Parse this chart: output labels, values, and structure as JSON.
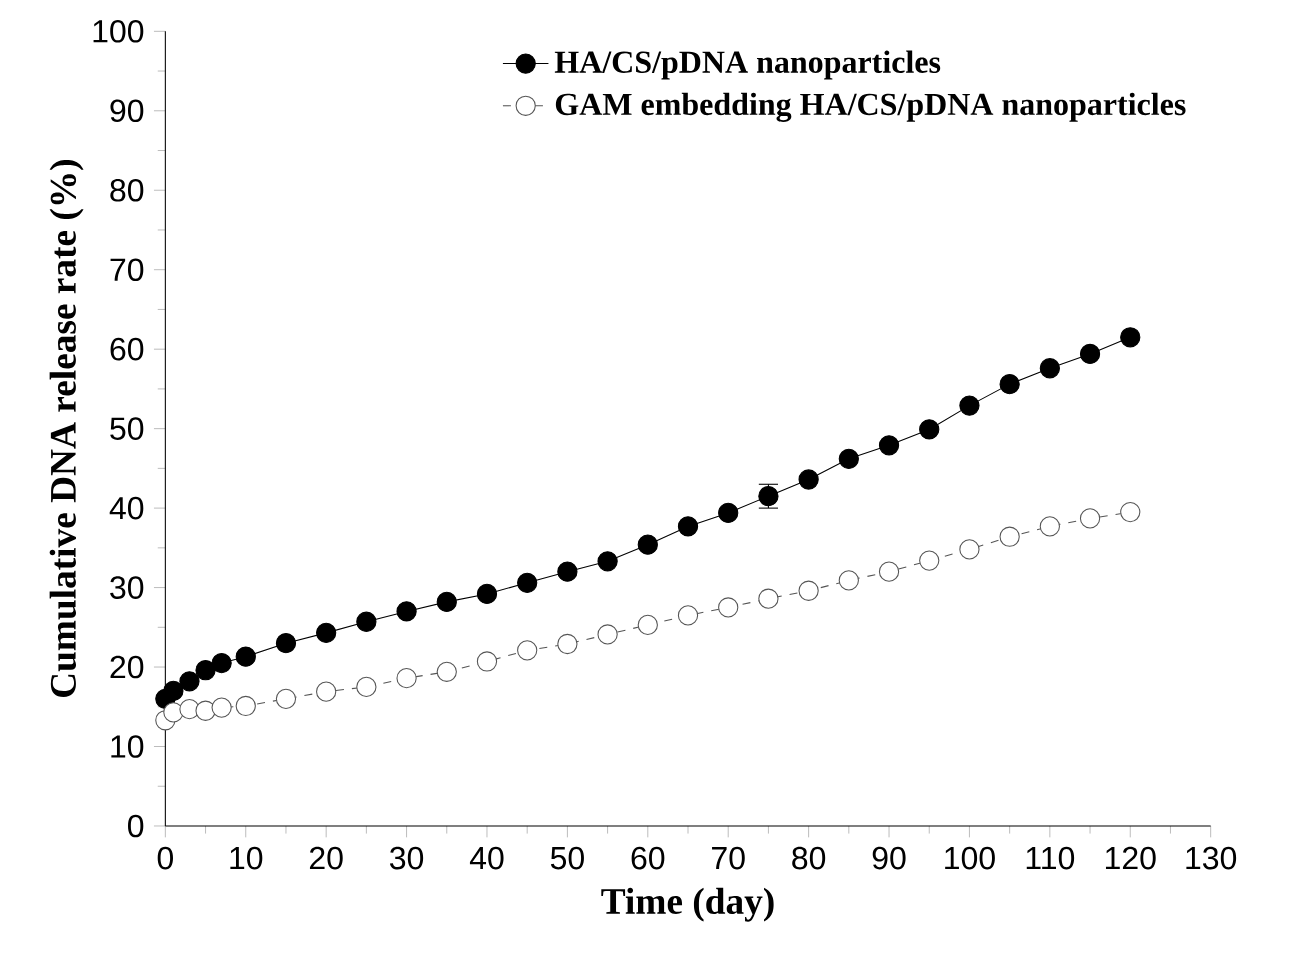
{
  "chart_data": {
    "type": "line",
    "xlabel": "Time (day)",
    "ylabel": "Cumulative DNA release rate (%)",
    "xlim": [
      0,
      130
    ],
    "ylim": [
      0,
      100
    ],
    "xticks": [
      0,
      10,
      20,
      30,
      40,
      50,
      60,
      70,
      80,
      90,
      100,
      110,
      120,
      130
    ],
    "yticks": [
      0,
      10,
      20,
      30,
      40,
      50,
      60,
      70,
      80,
      90,
      100
    ],
    "x": [
      0,
      1,
      3,
      5,
      7,
      10,
      15,
      20,
      25,
      30,
      35,
      40,
      45,
      50,
      55,
      60,
      65,
      70,
      75,
      80,
      85,
      90,
      95,
      100,
      105,
      110,
      115,
      120
    ],
    "marker": "circle",
    "legend": "top right",
    "grid": false,
    "series": [
      {
        "name": "HA/CS/pDNA nanoparticles",
        "color": "#000000",
        "line_style": "solid",
        "values": [
          16,
          17,
          18.2,
          19.6,
          20.5,
          21.3,
          23,
          24.3,
          25.7,
          27,
          28.2,
          29.2,
          30.6,
          32,
          33.3,
          35.4,
          37.7,
          39.4,
          41.5,
          43.6,
          46.2,
          47.9,
          49.9,
          52.9,
          55.6,
          57.6,
          59.4,
          61.5
        ],
        "errors": [
          null,
          null,
          null,
          null,
          null,
          null,
          null,
          null,
          null,
          null,
          null,
          null,
          null,
          null,
          null,
          null,
          null,
          null,
          1.5,
          null,
          null,
          null,
          null,
          null,
          null,
          null,
          null,
          null
        ]
      },
      {
        "name": "GAM embedding HA/CS/pDNA nanoparticles",
        "color": "#555555",
        "line_style": "dashed",
        "values": [
          13.3,
          14.3,
          14.7,
          14.5,
          14.9,
          15.1,
          16,
          16.9,
          17.5,
          18.6,
          19.4,
          20.7,
          22.1,
          22.9,
          24.1,
          25.3,
          26.5,
          27.5,
          28.6,
          29.6,
          30.9,
          32,
          33.4,
          34.8,
          36.4,
          37.7,
          38.7,
          39.5
        ]
      }
    ]
  }
}
